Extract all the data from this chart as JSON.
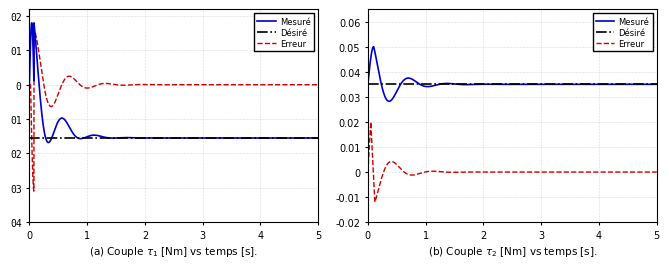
{
  "plot1": {
    "xlabel": "(a) Couple $\\tau_1$ [Nm] vs temps [s].",
    "ylim": [
      -0.4,
      0.22
    ],
    "xlim": [
      0,
      5
    ],
    "yticks": [
      0.2,
      0.1,
      0.0,
      -0.1,
      -0.2,
      -0.3,
      -0.4
    ],
    "ytick_labels": [
      "0.2",
      "0.1",
      "0",
      "-0.1",
      "-0.2",
      "-0.3",
      "-0.4"
    ],
    "ytick_labels_matlab": [
      "02",
      "01",
      "0",
      "01",
      "02",
      "03",
      "04"
    ],
    "desired_value": -0.155,
    "measured_color": "#0000cc",
    "desired_color": "#000000",
    "error_color": "#cc0000",
    "xticks": [
      0,
      1,
      2,
      3,
      4,
      5
    ]
  },
  "plot2": {
    "xlabel": "(b) Couple $\\tau_2$ [Nm] vs temps [s].",
    "ylim": [
      -0.02,
      0.065
    ],
    "xlim": [
      0,
      5
    ],
    "yticks": [
      -0.02,
      -0.01,
      0.0,
      0.01,
      0.02,
      0.03,
      0.04,
      0.05,
      0.06
    ],
    "ytick_labels": [
      "-0.02",
      "-0.01",
      "0",
      "0.01",
      "0.02",
      "0.03",
      "0.04",
      "0.05",
      "0.06"
    ],
    "desired_value": 0.035,
    "measured_color": "#0000cc",
    "desired_color": "#000000",
    "error_color": "#cc0000",
    "xticks": [
      0,
      1,
      2,
      3,
      4,
      5
    ]
  },
  "legend_labels": [
    "Mesuré",
    "Désiré",
    "Erreur"
  ],
  "background_color": "#ffffff",
  "grid_color": "#b0b0b0"
}
